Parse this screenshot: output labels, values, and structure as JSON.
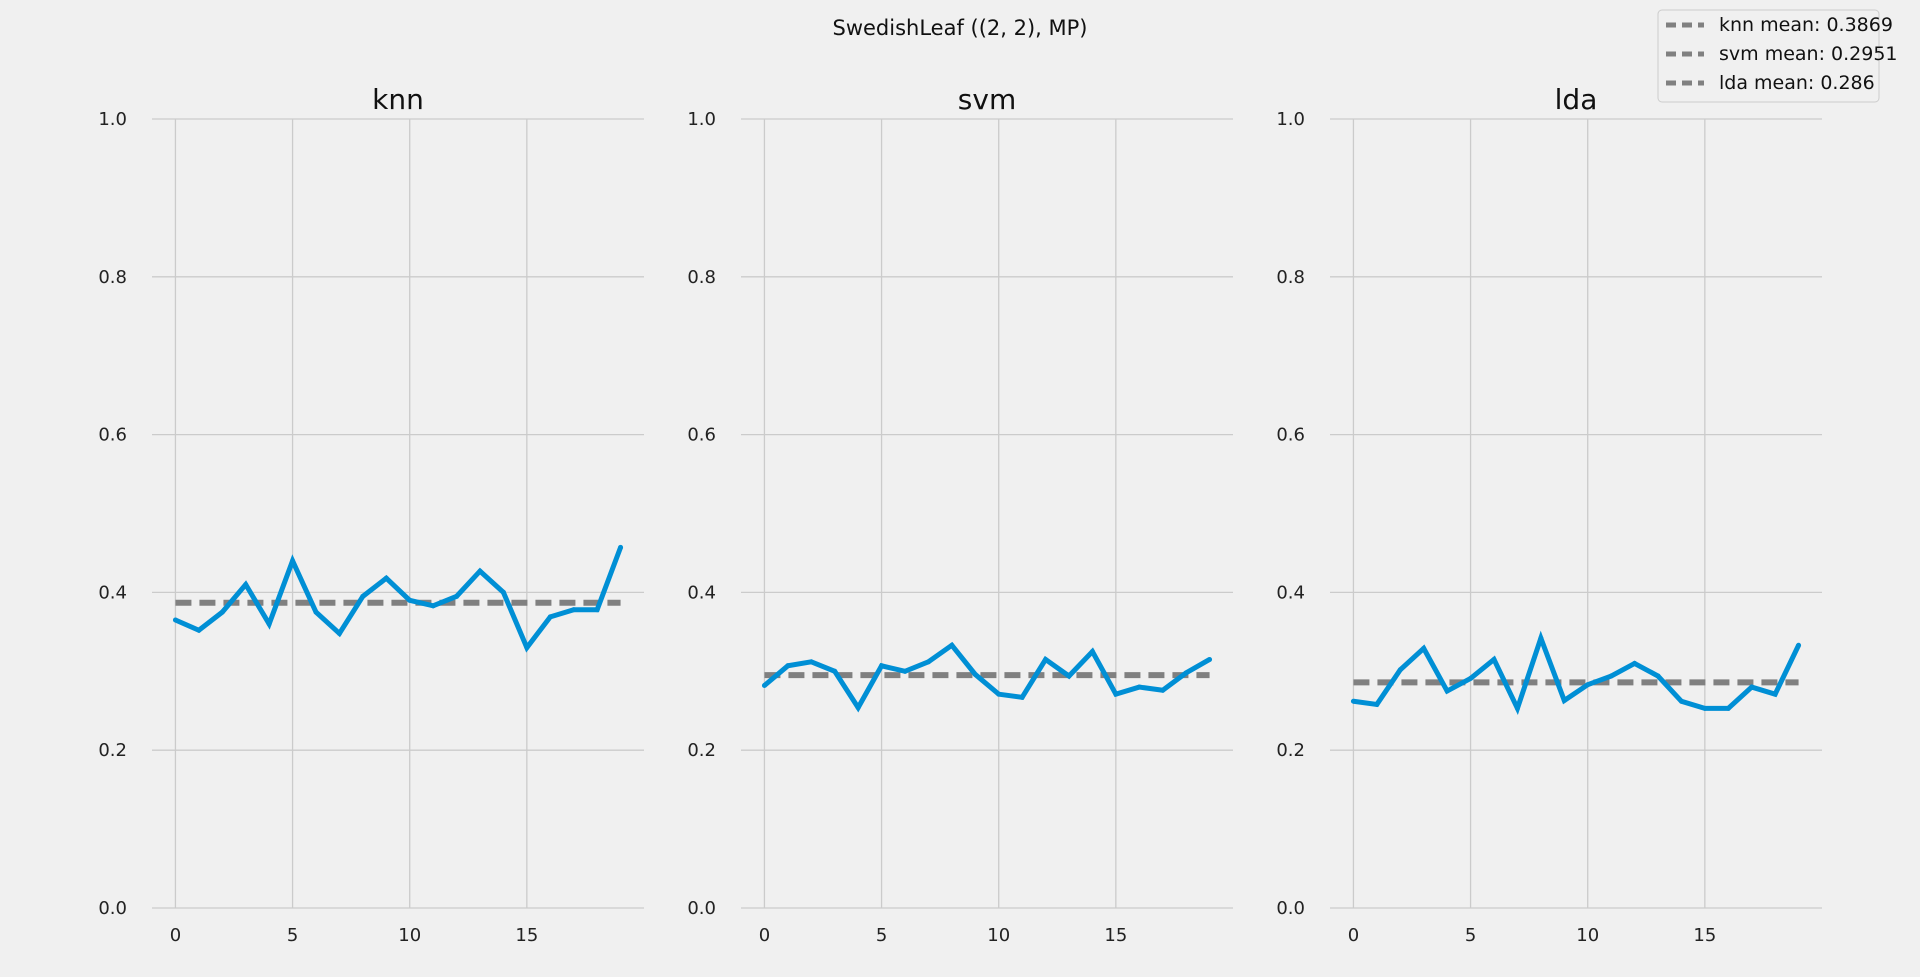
{
  "chart_data": {
    "type": "line",
    "suptitle": "SwedishLeaf ((2, 2), MP)",
    "colors": {
      "series": "#008fd5",
      "mean": "#808080",
      "grid": "#cbcbcb",
      "background": "#f0f0f0"
    },
    "legend": {
      "placement": "top-right",
      "entries": [
        "knn mean: 0.3869",
        "svm mean: 0.2951",
        "lda mean: 0.286"
      ]
    },
    "xlim": [
      -1,
      20
    ],
    "ylim": [
      0.0,
      1.0
    ],
    "xticks": [
      0,
      5,
      10,
      15
    ],
    "xtick_labels": [
      "0",
      "5",
      "10",
      "15"
    ],
    "yticks": [
      0.0,
      0.2,
      0.4,
      0.6,
      0.8,
      1.0
    ],
    "ytick_labels": [
      "0.0",
      "0.2",
      "0.4",
      "0.6",
      "0.8",
      "1.0"
    ],
    "grid": true,
    "panels": [
      {
        "title": "knn",
        "x": [
          0,
          1,
          2,
          3,
          4,
          5,
          6,
          7,
          8,
          9,
          10,
          11,
          12,
          13,
          14,
          15,
          16,
          17,
          18,
          19
        ],
        "values": [
          0.365,
          0.352,
          0.375,
          0.41,
          0.36,
          0.44,
          0.375,
          0.348,
          0.395,
          0.418,
          0.39,
          0.383,
          0.395,
          0.427,
          0.4,
          0.33,
          0.369,
          0.378,
          0.378,
          0.457
        ],
        "mean": 0.3869
      },
      {
        "title": "svm",
        "x": [
          0,
          1,
          2,
          3,
          4,
          5,
          6,
          7,
          8,
          9,
          10,
          11,
          12,
          13,
          14,
          15,
          16,
          17,
          18,
          19
        ],
        "values": [
          0.282,
          0.307,
          0.312,
          0.3,
          0.254,
          0.307,
          0.3,
          0.312,
          0.333,
          0.296,
          0.271,
          0.267,
          0.315,
          0.294,
          0.325,
          0.271,
          0.28,
          0.276,
          0.298,
          0.315
        ],
        "mean": 0.2951
      },
      {
        "title": "lda",
        "x": [
          0,
          1,
          2,
          3,
          4,
          5,
          6,
          7,
          8,
          9,
          10,
          11,
          12,
          13,
          14,
          15,
          16,
          17,
          18,
          19
        ],
        "values": [
          0.262,
          0.258,
          0.302,
          0.329,
          0.275,
          0.291,
          0.315,
          0.253,
          0.342,
          0.263,
          0.283,
          0.294,
          0.31,
          0.294,
          0.262,
          0.253,
          0.253,
          0.28,
          0.271,
          0.333
        ],
        "mean": 0.286
      }
    ]
  }
}
